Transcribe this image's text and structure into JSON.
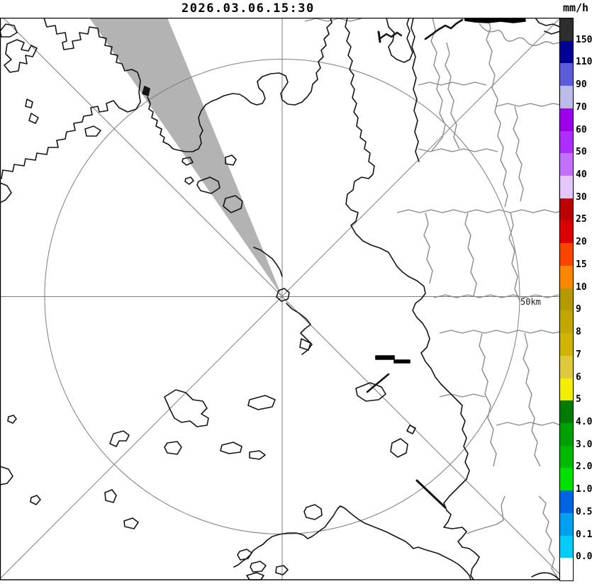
{
  "header": {
    "timestamp": "2026.03.06.15:30",
    "unit_label": "mm/h"
  },
  "map": {
    "range_ring_label": "50km"
  },
  "legend": {
    "segments": [
      {
        "color": "#2d2d2d",
        "label": "150"
      },
      {
        "color": "#000095",
        "label": "110"
      },
      {
        "color": "#5c5cd8",
        "label": "90"
      },
      {
        "color": "#bbbbe9",
        "label": "70"
      },
      {
        "color": "#9c00e8",
        "label": "60"
      },
      {
        "color": "#ad2dff",
        "label": "50"
      },
      {
        "color": "#c470ff",
        "label": "40"
      },
      {
        "color": "#e4c8fb",
        "label": "30"
      },
      {
        "color": "#b80000",
        "label": "25"
      },
      {
        "color": "#dc0000",
        "label": "20"
      },
      {
        "color": "#f94400",
        "label": "15"
      },
      {
        "color": "#fb8700",
        "label": "10"
      },
      {
        "color": "#b29a00",
        "label": "9"
      },
      {
        "color": "#c2a700",
        "label": "8"
      },
      {
        "color": "#d1b400",
        "label": "7"
      },
      {
        "color": "#dfc83e",
        "label": "6"
      },
      {
        "color": "#f2ee00",
        "label": "5"
      },
      {
        "color": "#007a00",
        "label": "4.0"
      },
      {
        "color": "#00a000",
        "label": "3.0"
      },
      {
        "color": "#00b900",
        "label": "2.0"
      },
      {
        "color": "#00e000",
        "label": "1.0"
      },
      {
        "color": "#0063e0",
        "label": "0.5"
      },
      {
        "color": "#00a0f0",
        "label": "0.1"
      },
      {
        "color": "#00cdfa",
        "label": "0.0"
      },
      {
        "color": "#ffffff",
        "label": ""
      }
    ]
  },
  "colors": {
    "wedge": "#b3b3b3",
    "coast": "#141414",
    "boundary": "#8a8a8a",
    "grid": "#7d7d7d",
    "frame": "#000000"
  }
}
